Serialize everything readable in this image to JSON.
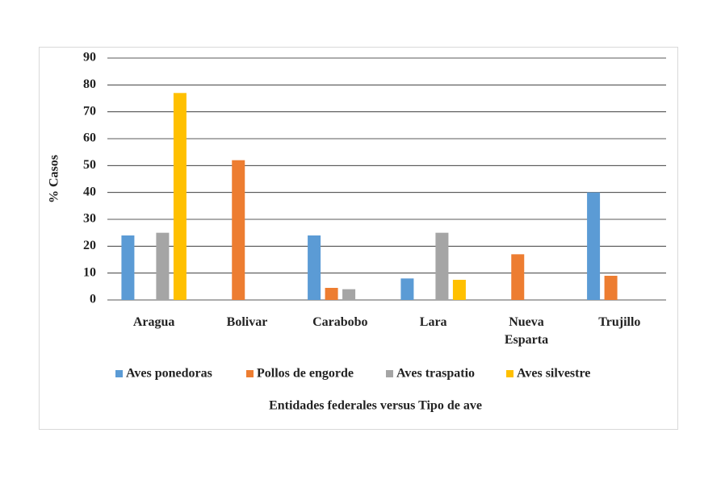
{
  "chart_data": {
    "type": "bar",
    "categories": [
      "Aragua",
      "Bolivar",
      "Carabobo",
      "Lara",
      "Nueva Esparta",
      "Trujillo"
    ],
    "series": [
      {
        "name": "Aves ponedoras",
        "color": "#5b9bd5",
        "values": [
          24,
          0,
          24,
          8,
          0,
          40
        ]
      },
      {
        "name": "Pollos de engorde",
        "color": "#ed7d31",
        "values": [
          0,
          52,
          4.5,
          0,
          17,
          9
        ]
      },
      {
        "name": "Aves traspatio",
        "color": "#a5a5a5",
        "values": [
          25,
          0,
          4,
          25,
          0,
          0
        ]
      },
      {
        "name": "Aves silvestre",
        "color": "#ffc000",
        "values": [
          77,
          0,
          0,
          7.5,
          0,
          0
        ]
      }
    ],
    "ylim": [
      0,
      90
    ],
    "yticks": [
      0,
      10,
      20,
      30,
      40,
      50,
      60,
      70,
      80,
      90
    ],
    "y_label": "% Casos",
    "x_label": "Entidades federales versus Tipo de ave",
    "grid": true,
    "legend": "bottom"
  }
}
